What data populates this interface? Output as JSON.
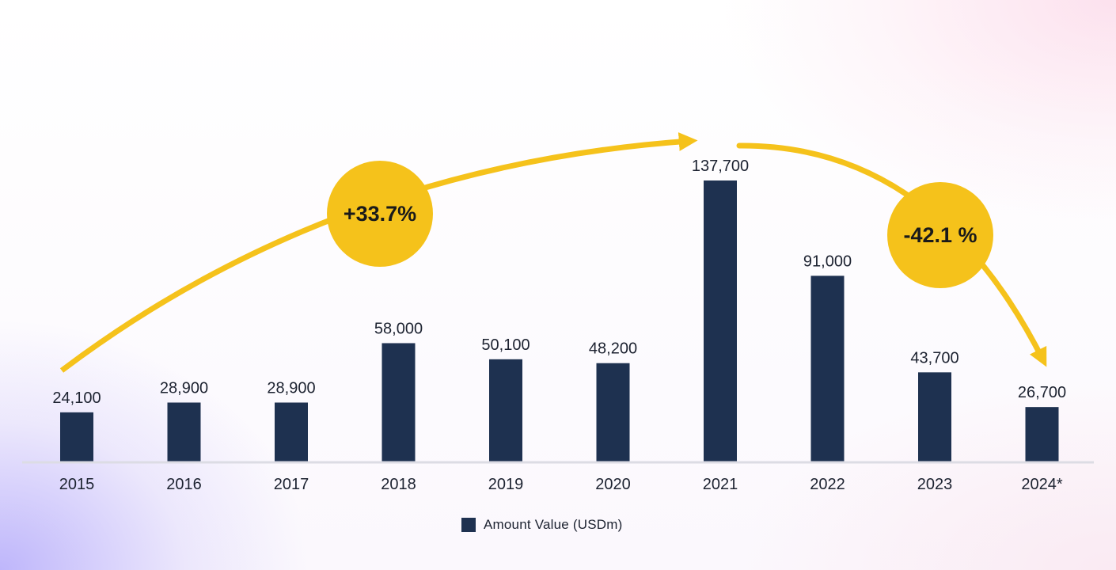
{
  "chart_data": {
    "type": "bar",
    "categories": [
      "2015",
      "2016",
      "2017",
      "2018",
      "2019",
      "2020",
      "2021",
      "2022",
      "2023",
      "2024*"
    ],
    "series": [
      {
        "name": "Amount Value (USDm)",
        "values": [
          24100,
          28900,
          28900,
          58000,
          50100,
          48200,
          137700,
          91000,
          43700,
          26700
        ],
        "labels": [
          "24,100",
          "28,900",
          "28,900",
          "58,000",
          "50,100",
          "48,200",
          "137,700",
          "91,000",
          "43,700",
          "26,700"
        ]
      }
    ],
    "ylim": [
      0,
      137700
    ],
    "grid": false,
    "legend_position": "bottom-center",
    "annotations": [
      {
        "text": "+33.7%",
        "from": "2015",
        "to": "2021",
        "direction": "up"
      },
      {
        "text": "-42.1 %",
        "from": "2021",
        "to": "2024*",
        "direction": "down"
      }
    ]
  },
  "legend": {
    "label": "Amount Value (USDm)"
  },
  "colors": {
    "bar": "#1e3150",
    "accent": "#f5c21b",
    "text": "#1c2230",
    "axis": "#dcdce4"
  }
}
